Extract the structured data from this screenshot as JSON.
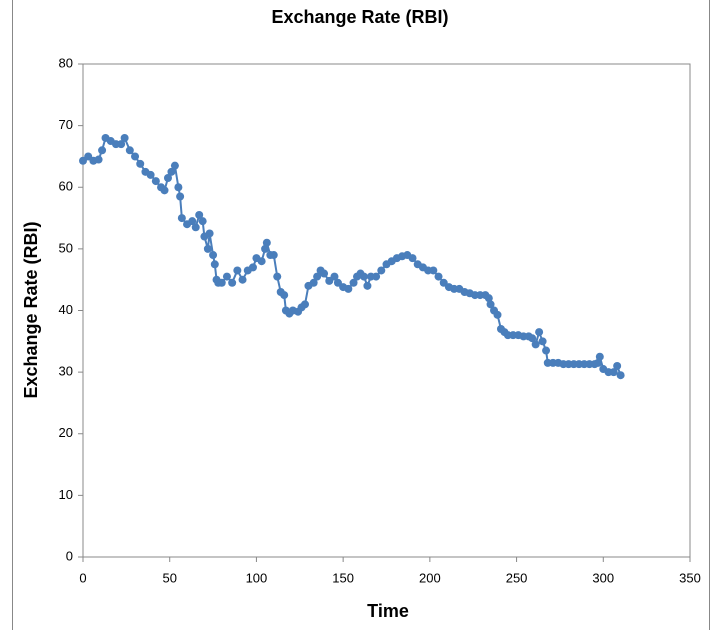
{
  "chart_data": {
    "type": "line",
    "title": "Exchange Rate (RBI)",
    "x_label": "Time",
    "y_label": "Exchange Rate (RBI)",
    "series": [
      {
        "name": "Exchange Rate (RBI)",
        "color": "#4a7ebb",
        "x": [
          0,
          3,
          6,
          9,
          11,
          13,
          16,
          19,
          22,
          24,
          27,
          30,
          33,
          36,
          39,
          42,
          45,
          47,
          49,
          51,
          53,
          55,
          56,
          57,
          60,
          63,
          65,
          67,
          69,
          70,
          72,
          73,
          75,
          76,
          77,
          78,
          80,
          83,
          86,
          89,
          92,
          95,
          98,
          100,
          103,
          105,
          106,
          108,
          110,
          112,
          114,
          116,
          117,
          119,
          121,
          124,
          126,
          128,
          130,
          133,
          135,
          137,
          139,
          142,
          145,
          147,
          150,
          153,
          156,
          158,
          160,
          162,
          164,
          166,
          169,
          172,
          175,
          178,
          181,
          184,
          187,
          190,
          193,
          196,
          199,
          202,
          205,
          208,
          211,
          214,
          217,
          220,
          223,
          226,
          229,
          232,
          234,
          235,
          237,
          239,
          241,
          243,
          245,
          248,
          251,
          254,
          257,
          259,
          261,
          263,
          265,
          267,
          268,
          271,
          274,
          277,
          280,
          283,
          286,
          289,
          292,
          295,
          297,
          298,
          300,
          303,
          306,
          308,
          310
        ],
        "values": [
          64.3,
          65,
          64.3,
          64.5,
          66,
          68,
          67.5,
          67,
          67,
          68,
          66,
          65,
          63.8,
          62.5,
          62,
          61,
          60,
          59.5,
          61.5,
          62.5,
          63.5,
          60,
          58.5,
          55,
          54,
          54.5,
          53.5,
          55.5,
          54.5,
          52,
          50,
          52.5,
          49,
          47.5,
          45,
          44.5,
          44.5,
          45.5,
          44.5,
          46.5,
          45,
          46.5,
          47,
          48.5,
          48,
          50,
          51,
          49,
          49,
          45.5,
          43,
          42.5,
          40,
          39.5,
          40,
          39.8,
          40.5,
          41,
          44,
          44.5,
          45.5,
          46.5,
          46,
          44.8,
          45.5,
          44.5,
          43.8,
          43.5,
          44.5,
          45.5,
          46,
          45.5,
          44,
          45.5,
          45.5,
          46.5,
          47.5,
          48,
          48.5,
          48.8,
          49,
          48.5,
          47.5,
          47,
          46.5,
          46.5,
          45.5,
          44.5,
          43.8,
          43.5,
          43.5,
          43,
          42.8,
          42.5,
          42.5,
          42.5,
          42,
          41,
          40,
          39.3,
          37,
          36.5,
          36,
          36,
          36,
          35.8,
          35.8,
          35.5,
          34.5,
          36.5,
          35,
          33.5,
          31.5,
          31.5,
          31.5,
          31.3,
          31.3,
          31.3,
          31.3,
          31.3,
          31.3,
          31.3,
          31.5,
          32.5,
          30.5,
          30,
          30,
          31,
          29.5
        ]
      }
    ],
    "xlim": [
      0,
      350
    ],
    "xticks": [
      0,
      50,
      100,
      150,
      200,
      250,
      300,
      350
    ],
    "ylim": [
      0,
      80
    ],
    "yticks": [
      0,
      10,
      20,
      30,
      40,
      50,
      60,
      70,
      80
    ]
  }
}
